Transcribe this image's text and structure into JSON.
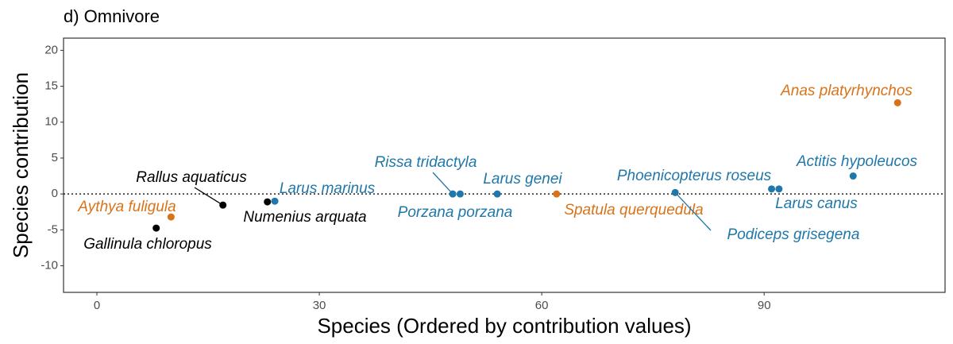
{
  "chart_data": {
    "type": "scatter",
    "title": "d) Omnivore",
    "x_label": "Species (Ordered by contribution values)",
    "y_label": "Species contribution",
    "xlim": [
      -4.5,
      114.4
    ],
    "ylim": [
      -13.7,
      21.7
    ],
    "xticks": [
      0,
      30,
      60,
      90
    ],
    "yticks": [
      -10,
      -5,
      0,
      5,
      10,
      15,
      20
    ],
    "hline": 0,
    "points": [
      {
        "label": "Gallinula chloropus",
        "x": 8,
        "y": -4.75,
        "color": "#000000"
      },
      {
        "label": "Aythya fuligula",
        "x": 10,
        "y": -3.2,
        "color": "#d9731a"
      },
      {
        "label": "Rallus aquaticus",
        "x": 17,
        "y": -1.55,
        "color": "#000000"
      },
      {
        "label": "Numenius arquata",
        "x": 23,
        "y": -1.1,
        "color": "#000000"
      },
      {
        "label": "Larus marinus",
        "x": 24,
        "y": -1.0,
        "color": "#1f77aa"
      },
      {
        "label": "Rissa tridactyla",
        "x": 48,
        "y": 0,
        "color": "#1f77aa"
      },
      {
        "label": "Porzana porzana",
        "x": 49,
        "y": 0,
        "color": "#1f77aa"
      },
      {
        "label": "Larus genei",
        "x": 54,
        "y": 0,
        "color": "#1f77aa"
      },
      {
        "label": "Spatula querquedula",
        "x": 62,
        "y": 0,
        "color": "#d9731a"
      },
      {
        "label": "Podiceps grisegena",
        "x": 78,
        "y": 0.2,
        "color": "#1f77aa"
      },
      {
        "label": "Phoenicopterus roseus",
        "x": 91,
        "y": 0.7,
        "color": "#1f77aa"
      },
      {
        "label": "Larus canus",
        "x": 92,
        "y": 0.7,
        "color": "#1f77aa"
      },
      {
        "label": "Actitis hypoleucos",
        "x": 102,
        "y": 2.5,
        "color": "#1f77aa"
      },
      {
        "label": "Anas platyrhynchos",
        "x": 108,
        "y": 12.7,
        "color": "#d9731a"
      }
    ]
  }
}
